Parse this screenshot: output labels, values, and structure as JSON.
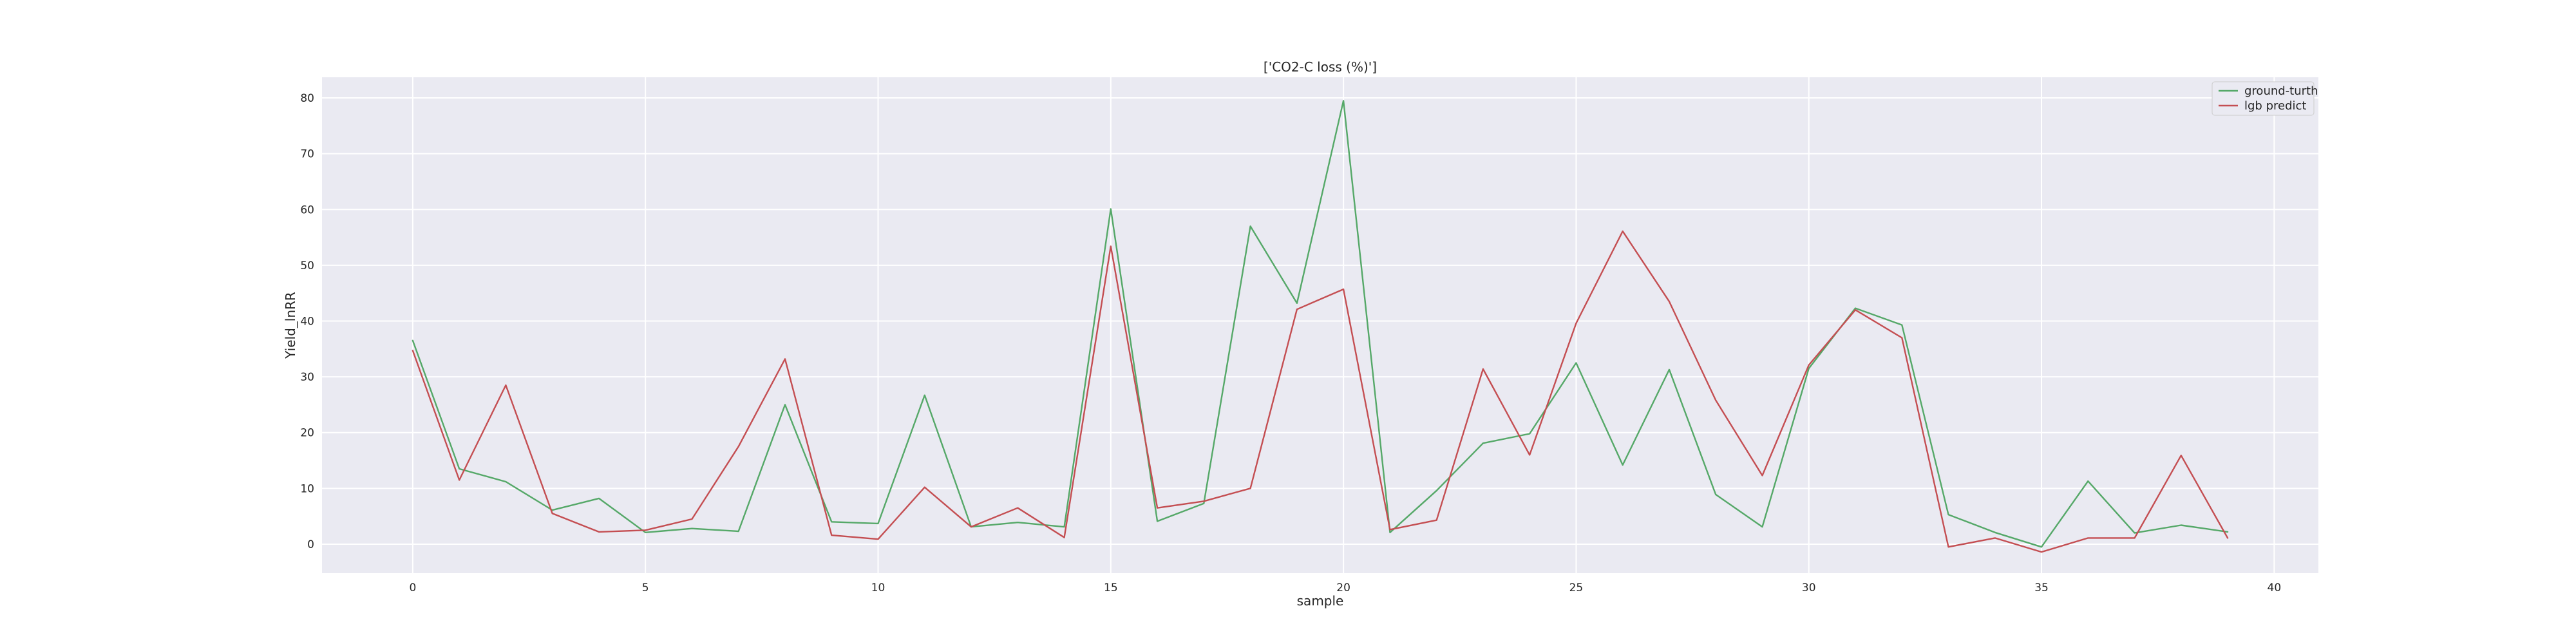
{
  "chart_data": {
    "type": "line",
    "title": "['CO2-C loss (%)']",
    "xlabel": "sample",
    "ylabel": "Yield_lnRR",
    "xlim": [
      -1.95,
      40.95
    ],
    "ylim": [
      -5.2,
      83.7
    ],
    "grid": true,
    "legend_position": "upper right",
    "background_color": "#eaeaf2",
    "x_ticks": [
      0,
      5,
      10,
      15,
      20,
      25,
      30,
      35,
      40
    ],
    "y_ticks": [
      0,
      10,
      20,
      30,
      40,
      50,
      60,
      70,
      80
    ],
    "x": [
      0,
      1,
      2,
      3,
      4,
      5,
      6,
      7,
      8,
      9,
      10,
      11,
      12,
      13,
      14,
      15,
      16,
      17,
      18,
      19,
      20,
      21,
      22,
      23,
      24,
      25,
      26,
      27,
      28,
      29,
      30,
      31,
      32,
      33,
      34,
      35,
      36,
      37,
      38,
      39
    ],
    "series": [
      {
        "name": "ground-turth",
        "color": "#55a868",
        "values": [
          36.5,
          13.5,
          11.2,
          6.1,
          8.2,
          2.1,
          2.8,
          2.3,
          25.0,
          4.0,
          3.7,
          26.7,
          3.1,
          3.9,
          3.1,
          60.1,
          4.1,
          7.3,
          57.0,
          43.2,
          79.5,
          2.1,
          9.6,
          18.1,
          19.8,
          32.5,
          14.2,
          31.3,
          8.9,
          3.1,
          31.5,
          42.3,
          39.3,
          5.3,
          2.1,
          -0.5,
          11.3,
          2.0,
          3.4,
          2.2
        ]
      },
      {
        "name": "lgb predict",
        "color": "#c44e52",
        "values": [
          34.7,
          11.5,
          28.5,
          5.5,
          2.2,
          2.5,
          4.5,
          17.5,
          33.2,
          1.6,
          0.9,
          10.2,
          3.1,
          6.5,
          1.2,
          53.4,
          6.5,
          7.7,
          10.0,
          42.1,
          45.7,
          2.6,
          4.3,
          31.4,
          16.0,
          39.6,
          56.1,
          43.5,
          25.8,
          12.3,
          32.1,
          42.0,
          37.0,
          -0.5,
          1.1,
          -1.4,
          1.1,
          1.1,
          15.9,
          1.1
        ]
      }
    ]
  }
}
